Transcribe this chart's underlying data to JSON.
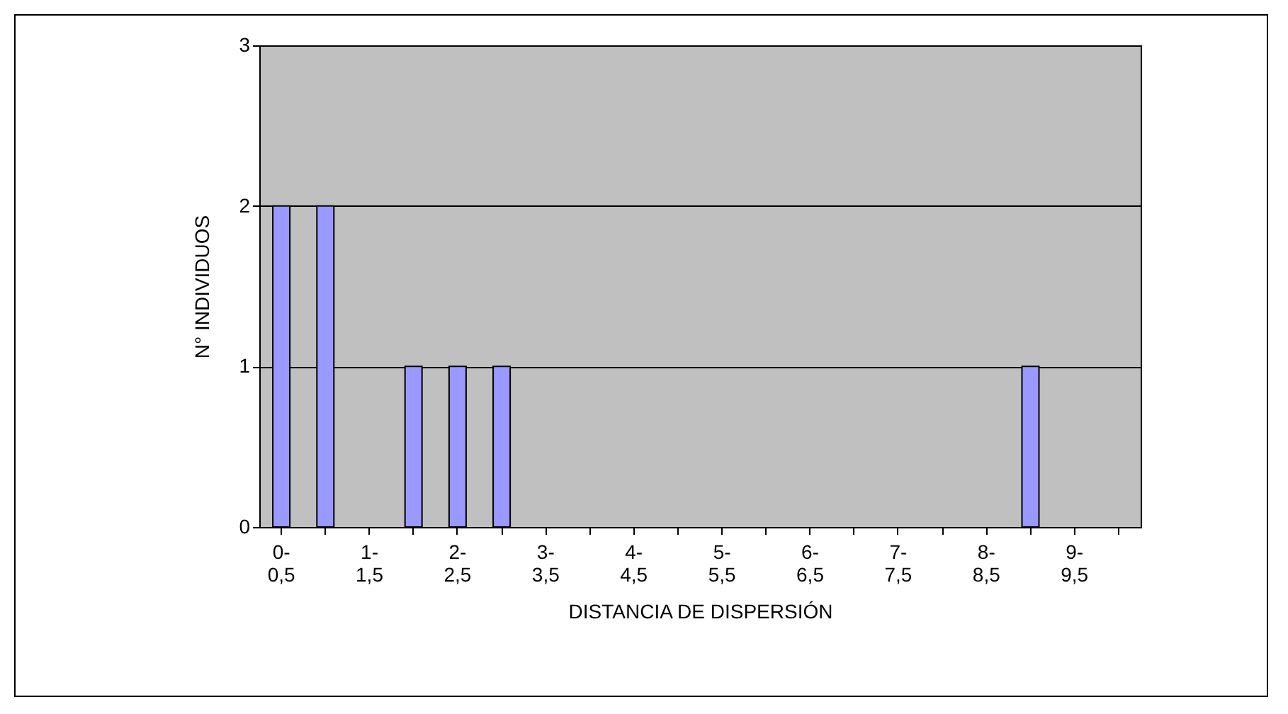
{
  "chart_data": {
    "type": "bar",
    "xlabel": "DISTANCIA DE DISPERSIÓN",
    "ylabel": "N° INDIVIDUOS",
    "categories": [
      "0-0,5",
      null,
      "1-1,5",
      null,
      "2-2,5",
      null,
      "3-3,5",
      null,
      "4-4,5",
      null,
      "5-5,5",
      null,
      "6-6,5",
      null,
      "7-7,5",
      null,
      "8-8,5",
      null,
      "9-9,5",
      null
    ],
    "values": [
      2,
      2,
      0,
      1,
      1,
      1,
      0,
      0,
      0,
      0,
      0,
      0,
      0,
      0,
      0,
      0,
      0,
      1,
      0,
      0
    ],
    "color": "#9999ff",
    "ylim": [
      0,
      3
    ],
    "yticks": [
      0,
      1,
      2,
      3
    ],
    "grid": "y",
    "legend": false
  }
}
